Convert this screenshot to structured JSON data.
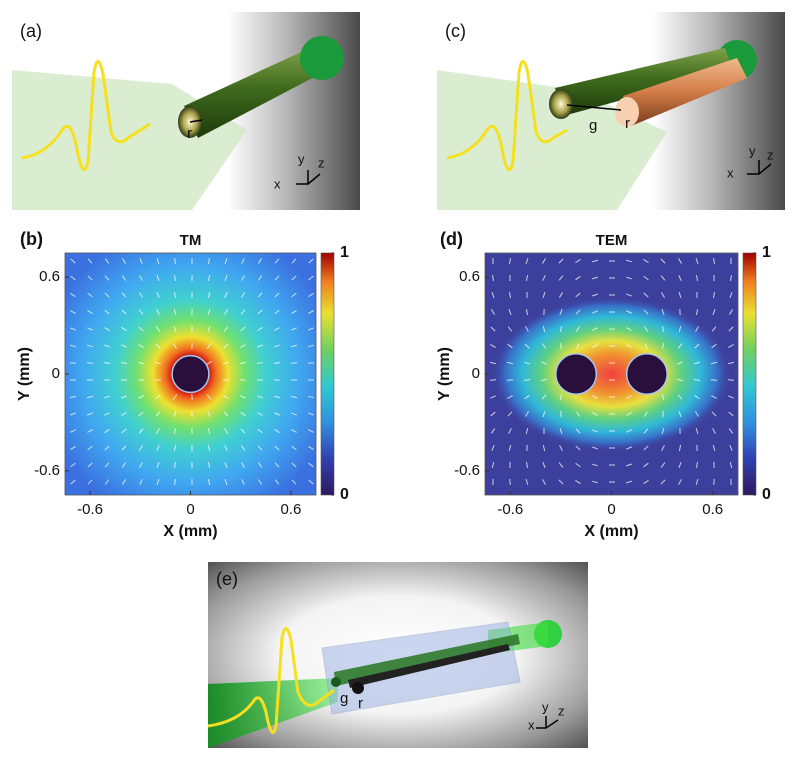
{
  "panels": [
    {
      "label": "(a)",
      "annotations": [
        "r"
      ],
      "axis_labels": [
        "x",
        "y",
        "z"
      ]
    },
    {
      "label": "(c)",
      "annotations": [
        "g",
        "r"
      ],
      "axis_labels": [
        "x",
        "y",
        "z"
      ]
    },
    {
      "label": "(e)",
      "annotations": [
        "g",
        "r"
      ],
      "axis_labels": [
        "x",
        "y",
        "z"
      ]
    }
  ],
  "chart_data": [
    {
      "type": "heatmap",
      "panel_label": "(b)",
      "title": "TM",
      "xlabel": "X (mm)",
      "ylabel": "Y (mm)",
      "xlim": [
        -0.75,
        0.75
      ],
      "ylim": [
        -0.75,
        0.75
      ],
      "xticks": [
        -0.6,
        0,
        0.6
      ],
      "yticks": [
        -0.6,
        0,
        0.6
      ],
      "conductors": [
        {
          "x": 0,
          "y": 0,
          "r": 0.11
        }
      ],
      "colorbar": {
        "lim": [
          0,
          1
        ],
        "ticks": [
          0,
          1
        ]
      }
    },
    {
      "type": "heatmap",
      "panel_label": "(d)",
      "title": "TEM",
      "xlabel": "X (mm)",
      "ylabel": "Y (mm)",
      "xlim": [
        -0.75,
        0.75
      ],
      "ylim": [
        -0.75,
        0.75
      ],
      "xticks": [
        -0.6,
        0,
        0.6
      ],
      "yticks": [
        -0.6,
        0,
        0.6
      ],
      "conductors": [
        {
          "x": -0.21,
          "y": 0,
          "r": 0.12
        },
        {
          "x": 0.21,
          "y": 0,
          "r": 0.12
        }
      ],
      "colorbar": {
        "lim": [
          0,
          1
        ],
        "ticks": [
          0,
          1
        ]
      }
    }
  ]
}
